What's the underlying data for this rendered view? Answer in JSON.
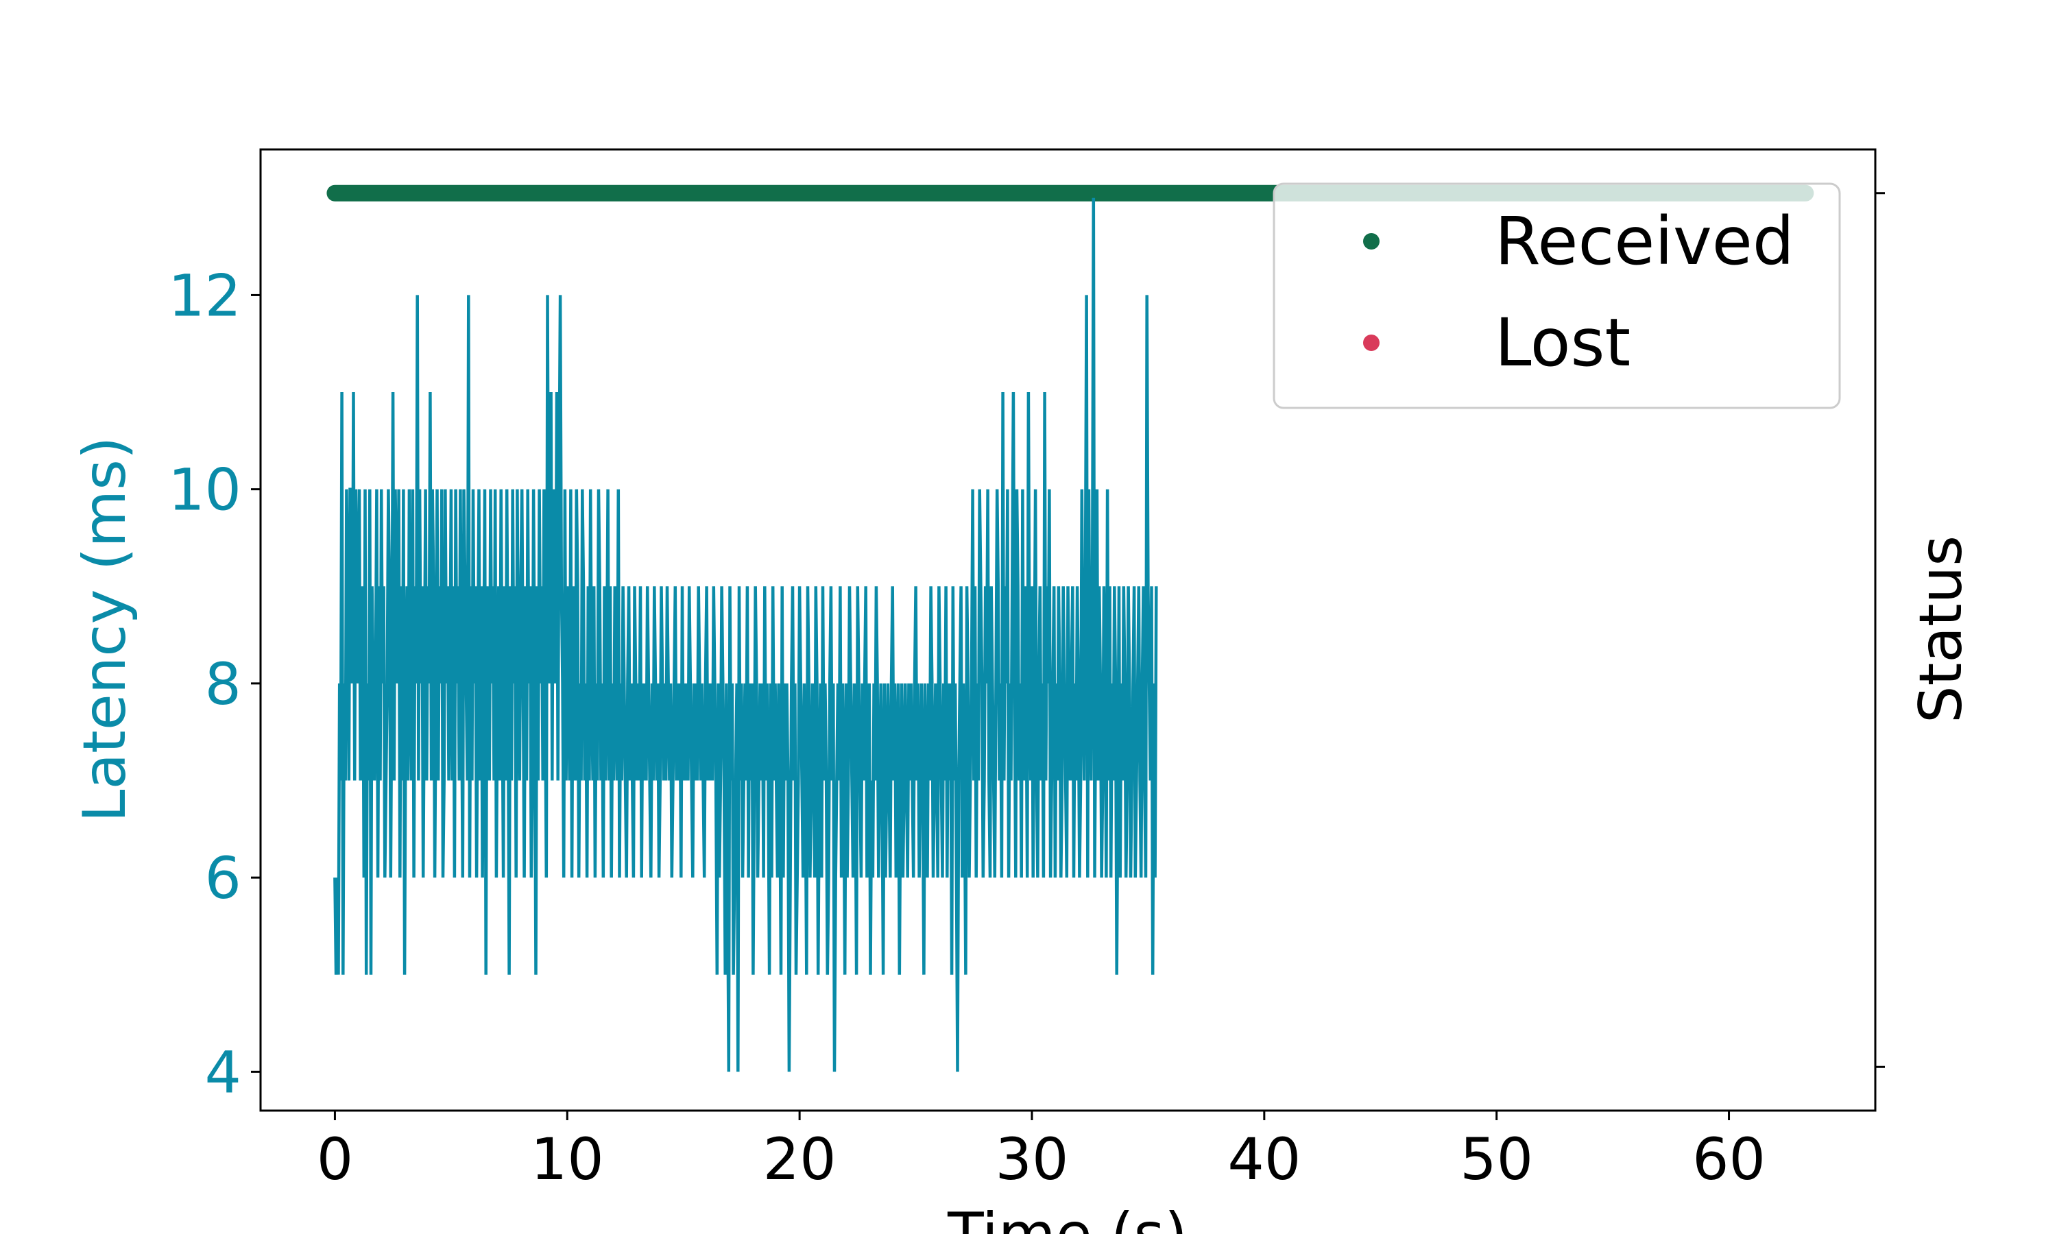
{
  "chart_data": {
    "type": "line",
    "title": "",
    "xlabel": "Time (s)",
    "ylabel": "Latency (ms)",
    "ylabel_right": "Status",
    "xlim": [
      -3.2,
      66.3
    ],
    "ylim": [
      3.6,
      13.5
    ],
    "xticks": [
      0,
      10,
      20,
      30,
      40,
      50,
      60
    ],
    "yticks": [
      4,
      6,
      8,
      10,
      12
    ],
    "right_axis_ticks": [
      0,
      1
    ],
    "right_axis_ylim": [
      -0.05,
      1.05
    ],
    "grid": false,
    "legend_position": "top-right",
    "colors": {
      "latency": "#0a8ba8",
      "received": "#116e4a",
      "lost": "#d93a5a",
      "axis_label_left": "#0a8ba8"
    },
    "series": [
      {
        "name": "Latency",
        "axis": "left",
        "style": "line",
        "x_start": 0.0,
        "x_step": 0.05,
        "values": [
          6,
          5,
          6,
          5,
          8,
          7,
          11,
          5,
          8,
          7,
          10,
          9,
          7,
          10,
          10,
          8,
          11,
          7,
          10,
          9,
          8,
          10,
          7,
          8,
          9,
          6,
          10,
          5,
          8,
          7,
          10,
          5,
          9,
          8,
          7,
          8,
          10,
          6,
          9,
          7,
          10,
          8,
          9,
          6,
          7,
          8,
          10,
          9,
          6,
          8,
          11,
          7,
          10,
          9,
          8,
          10,
          6,
          9,
          7,
          10,
          5,
          8,
          9,
          7,
          10,
          8,
          7,
          10,
          6,
          9,
          8,
          12,
          7,
          10,
          8,
          9,
          6,
          8,
          10,
          7,
          9,
          8,
          11,
          7,
          10,
          9,
          6,
          8,
          10,
          7,
          9,
          8,
          10,
          6,
          7,
          10,
          8,
          9,
          7,
          8,
          10,
          7,
          9,
          6,
          10,
          8,
          9,
          7,
          10,
          8,
          6,
          10,
          9,
          8,
          7,
          12,
          6,
          9,
          7,
          10,
          8,
          9,
          6,
          8,
          10,
          7,
          9,
          6,
          8,
          10,
          5,
          9,
          8,
          7,
          10,
          8,
          9,
          7,
          10,
          6,
          8,
          9,
          7,
          10,
          8,
          6,
          9,
          7,
          10,
          8,
          5,
          9,
          7,
          10,
          8,
          9,
          6,
          10,
          8,
          7,
          9,
          10,
          8,
          6,
          9,
          7,
          10,
          8,
          9,
          6,
          7,
          10,
          8,
          5,
          9,
          7,
          10,
          8,
          9,
          7,
          10,
          8,
          6,
          12,
          9,
          8,
          11,
          7,
          10,
          9,
          8,
          11,
          7,
          10,
          12,
          9,
          8,
          6,
          10,
          7,
          9,
          8,
          7,
          10,
          6,
          9,
          8,
          7,
          10,
          9,
          6,
          8,
          7,
          10,
          9,
          7,
          8,
          6,
          9,
          7,
          10,
          8,
          7,
          9,
          6,
          8,
          7,
          10,
          9,
          7,
          8,
          6,
          9,
          7,
          8,
          10,
          7,
          9,
          6,
          8,
          7,
          9,
          8,
          7,
          10,
          6,
          8,
          7,
          9,
          8,
          7,
          6,
          8,
          9,
          7,
          8,
          7,
          6,
          9,
          8,
          7,
          8,
          7,
          9,
          6,
          8,
          7,
          8,
          7,
          9,
          8,
          7,
          6,
          8,
          7,
          9,
          8,
          7,
          8,
          6,
          7,
          9,
          8,
          7,
          8,
          7,
          9,
          8,
          7,
          8,
          6,
          7,
          8,
          9,
          7,
          8,
          7,
          8,
          6,
          9,
          7,
          8,
          7,
          8,
          7,
          9,
          8,
          7,
          6,
          8,
          7,
          8,
          7,
          9,
          8,
          7,
          8,
          7,
          6,
          8,
          9,
          7,
          8,
          7,
          8,
          7,
          9,
          8,
          7,
          5,
          8,
          6,
          7,
          9,
          8,
          7,
          5,
          8,
          6,
          4,
          9,
          7,
          8,
          5,
          6,
          7,
          8,
          4,
          9,
          7,
          8,
          6,
          7,
          8,
          7,
          9,
          6,
          8,
          7,
          8,
          5,
          7,
          9,
          8,
          6,
          7,
          8,
          7,
          8,
          6,
          9,
          7,
          8,
          7,
          5,
          8,
          6,
          9,
          7,
          8,
          7,
          6,
          8,
          7,
          5,
          9,
          6,
          8,
          7,
          8,
          7,
          4,
          6,
          8,
          9,
          7,
          8,
          5,
          6,
          7,
          9,
          8,
          7,
          6,
          8,
          7,
          5,
          9,
          8,
          6,
          7,
          8,
          7,
          6,
          9,
          8,
          5,
          7,
          8,
          6,
          9,
          7,
          8,
          7,
          5,
          6,
          8,
          9,
          7,
          8,
          4,
          6,
          7,
          8,
          7,
          9,
          6,
          8,
          7,
          5,
          8,
          6,
          7,
          9,
          8,
          7,
          6,
          8,
          7,
          5,
          9,
          8,
          7,
          6,
          8,
          7,
          8,
          9,
          6,
          7,
          8,
          5,
          7,
          6,
          8,
          7,
          9,
          8,
          6,
          7,
          8,
          7,
          5,
          8,
          6,
          7,
          8,
          7,
          6,
          8,
          9,
          7,
          8,
          6,
          7,
          8,
          5,
          7,
          8,
          6,
          7,
          8,
          7,
          6,
          8,
          7,
          8,
          7,
          6,
          8,
          9,
          7,
          8,
          6,
          7,
          8,
          7,
          5,
          8,
          7,
          6,
          8,
          7,
          9,
          8,
          6,
          7,
          8,
          7,
          6,
          9,
          8,
          7,
          6,
          8,
          7,
          9,
          6,
          8,
          7,
          8,
          5,
          9,
          7,
          8,
          6,
          4,
          7,
          8,
          9,
          6,
          8,
          7,
          5,
          9,
          8,
          6,
          7,
          8,
          10,
          7,
          9,
          6,
          8,
          7,
          10,
          9,
          8,
          6,
          7,
          9,
          8,
          10,
          7,
          6,
          9,
          8,
          7,
          6,
          8,
          10,
          9,
          7,
          8,
          6,
          11,
          7,
          9,
          8,
          10,
          6,
          8,
          7,
          9,
          11,
          8,
          6,
          10,
          9,
          7,
          8,
          6,
          10,
          7,
          9,
          8,
          6,
          11,
          8,
          7,
          9,
          6,
          8,
          10,
          7,
          6,
          8,
          9,
          7,
          8,
          6,
          11,
          7,
          9,
          8,
          10,
          6,
          7,
          8,
          9,
          6,
          8,
          7,
          9,
          8,
          6,
          7,
          9,
          8,
          7,
          6,
          9,
          8,
          7,
          8,
          9,
          6,
          8,
          7,
          9,
          8,
          6,
          7,
          10,
          8,
          7,
          9,
          12,
          6,
          10,
          8,
          7,
          9,
          13,
          6,
          8,
          10,
          7,
          9,
          8,
          6,
          7,
          9,
          8,
          6,
          10,
          7,
          9,
          6,
          8,
          7,
          9,
          8,
          5,
          7,
          9,
          6,
          8,
          7,
          9,
          8,
          6,
          7,
          9,
          8,
          6,
          7,
          8,
          9,
          6,
          7,
          8,
          9,
          7,
          6,
          8,
          9,
          7,
          6,
          12,
          9,
          8,
          7,
          9,
          5,
          8,
          6,
          9
        ]
      },
      {
        "name": "Received",
        "axis": "right",
        "style": "markers",
        "status_value": 1,
        "x_range": [
          0,
          63.3
        ]
      },
      {
        "name": "Lost",
        "axis": "right",
        "style": "markers",
        "status_value": 0,
        "x_range": []
      }
    ],
    "legend": [
      "Received",
      "Lost"
    ]
  }
}
